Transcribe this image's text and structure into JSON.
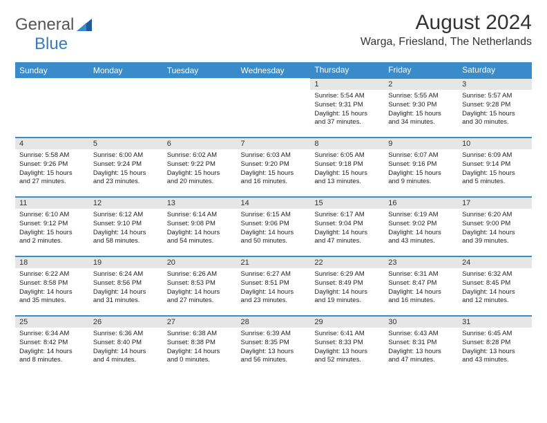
{
  "logo": {
    "text_general": "General",
    "text_blue": "Blue"
  },
  "title": "August 2024",
  "location": "Warga, Friesland, The Netherlands",
  "colors": {
    "header_bg": "#3a8bc9",
    "daynum_bg": "#e6e6e6",
    "border": "#3a8bc9",
    "logo_blue": "#3a7ab8"
  },
  "weekdays": [
    "Sunday",
    "Monday",
    "Tuesday",
    "Wednesday",
    "Thursday",
    "Friday",
    "Saturday"
  ],
  "weeks": [
    [
      {
        "day": "",
        "sunrise": "",
        "sunset": "",
        "daylight": ""
      },
      {
        "day": "",
        "sunrise": "",
        "sunset": "",
        "daylight": ""
      },
      {
        "day": "",
        "sunrise": "",
        "sunset": "",
        "daylight": ""
      },
      {
        "day": "",
        "sunrise": "",
        "sunset": "",
        "daylight": ""
      },
      {
        "day": "1",
        "sunrise": "Sunrise: 5:54 AM",
        "sunset": "Sunset: 9:31 PM",
        "daylight": "Daylight: 15 hours and 37 minutes."
      },
      {
        "day": "2",
        "sunrise": "Sunrise: 5:55 AM",
        "sunset": "Sunset: 9:30 PM",
        "daylight": "Daylight: 15 hours and 34 minutes."
      },
      {
        "day": "3",
        "sunrise": "Sunrise: 5:57 AM",
        "sunset": "Sunset: 9:28 PM",
        "daylight": "Daylight: 15 hours and 30 minutes."
      }
    ],
    [
      {
        "day": "4",
        "sunrise": "Sunrise: 5:58 AM",
        "sunset": "Sunset: 9:26 PM",
        "daylight": "Daylight: 15 hours and 27 minutes."
      },
      {
        "day": "5",
        "sunrise": "Sunrise: 6:00 AM",
        "sunset": "Sunset: 9:24 PM",
        "daylight": "Daylight: 15 hours and 23 minutes."
      },
      {
        "day": "6",
        "sunrise": "Sunrise: 6:02 AM",
        "sunset": "Sunset: 9:22 PM",
        "daylight": "Daylight: 15 hours and 20 minutes."
      },
      {
        "day": "7",
        "sunrise": "Sunrise: 6:03 AM",
        "sunset": "Sunset: 9:20 PM",
        "daylight": "Daylight: 15 hours and 16 minutes."
      },
      {
        "day": "8",
        "sunrise": "Sunrise: 6:05 AM",
        "sunset": "Sunset: 9:18 PM",
        "daylight": "Daylight: 15 hours and 13 minutes."
      },
      {
        "day": "9",
        "sunrise": "Sunrise: 6:07 AM",
        "sunset": "Sunset: 9:16 PM",
        "daylight": "Daylight: 15 hours and 9 minutes."
      },
      {
        "day": "10",
        "sunrise": "Sunrise: 6:09 AM",
        "sunset": "Sunset: 9:14 PM",
        "daylight": "Daylight: 15 hours and 5 minutes."
      }
    ],
    [
      {
        "day": "11",
        "sunrise": "Sunrise: 6:10 AM",
        "sunset": "Sunset: 9:12 PM",
        "daylight": "Daylight: 15 hours and 2 minutes."
      },
      {
        "day": "12",
        "sunrise": "Sunrise: 6:12 AM",
        "sunset": "Sunset: 9:10 PM",
        "daylight": "Daylight: 14 hours and 58 minutes."
      },
      {
        "day": "13",
        "sunrise": "Sunrise: 6:14 AM",
        "sunset": "Sunset: 9:08 PM",
        "daylight": "Daylight: 14 hours and 54 minutes."
      },
      {
        "day": "14",
        "sunrise": "Sunrise: 6:15 AM",
        "sunset": "Sunset: 9:06 PM",
        "daylight": "Daylight: 14 hours and 50 minutes."
      },
      {
        "day": "15",
        "sunrise": "Sunrise: 6:17 AM",
        "sunset": "Sunset: 9:04 PM",
        "daylight": "Daylight: 14 hours and 47 minutes."
      },
      {
        "day": "16",
        "sunrise": "Sunrise: 6:19 AM",
        "sunset": "Sunset: 9:02 PM",
        "daylight": "Daylight: 14 hours and 43 minutes."
      },
      {
        "day": "17",
        "sunrise": "Sunrise: 6:20 AM",
        "sunset": "Sunset: 9:00 PM",
        "daylight": "Daylight: 14 hours and 39 minutes."
      }
    ],
    [
      {
        "day": "18",
        "sunrise": "Sunrise: 6:22 AM",
        "sunset": "Sunset: 8:58 PM",
        "daylight": "Daylight: 14 hours and 35 minutes."
      },
      {
        "day": "19",
        "sunrise": "Sunrise: 6:24 AM",
        "sunset": "Sunset: 8:56 PM",
        "daylight": "Daylight: 14 hours and 31 minutes."
      },
      {
        "day": "20",
        "sunrise": "Sunrise: 6:26 AM",
        "sunset": "Sunset: 8:53 PM",
        "daylight": "Daylight: 14 hours and 27 minutes."
      },
      {
        "day": "21",
        "sunrise": "Sunrise: 6:27 AM",
        "sunset": "Sunset: 8:51 PM",
        "daylight": "Daylight: 14 hours and 23 minutes."
      },
      {
        "day": "22",
        "sunrise": "Sunrise: 6:29 AM",
        "sunset": "Sunset: 8:49 PM",
        "daylight": "Daylight: 14 hours and 19 minutes."
      },
      {
        "day": "23",
        "sunrise": "Sunrise: 6:31 AM",
        "sunset": "Sunset: 8:47 PM",
        "daylight": "Daylight: 14 hours and 16 minutes."
      },
      {
        "day": "24",
        "sunrise": "Sunrise: 6:32 AM",
        "sunset": "Sunset: 8:45 PM",
        "daylight": "Daylight: 14 hours and 12 minutes."
      }
    ],
    [
      {
        "day": "25",
        "sunrise": "Sunrise: 6:34 AM",
        "sunset": "Sunset: 8:42 PM",
        "daylight": "Daylight: 14 hours and 8 minutes."
      },
      {
        "day": "26",
        "sunrise": "Sunrise: 6:36 AM",
        "sunset": "Sunset: 8:40 PM",
        "daylight": "Daylight: 14 hours and 4 minutes."
      },
      {
        "day": "27",
        "sunrise": "Sunrise: 6:38 AM",
        "sunset": "Sunset: 8:38 PM",
        "daylight": "Daylight: 14 hours and 0 minutes."
      },
      {
        "day": "28",
        "sunrise": "Sunrise: 6:39 AM",
        "sunset": "Sunset: 8:35 PM",
        "daylight": "Daylight: 13 hours and 56 minutes."
      },
      {
        "day": "29",
        "sunrise": "Sunrise: 6:41 AM",
        "sunset": "Sunset: 8:33 PM",
        "daylight": "Daylight: 13 hours and 52 minutes."
      },
      {
        "day": "30",
        "sunrise": "Sunrise: 6:43 AM",
        "sunset": "Sunset: 8:31 PM",
        "daylight": "Daylight: 13 hours and 47 minutes."
      },
      {
        "day": "31",
        "sunrise": "Sunrise: 6:45 AM",
        "sunset": "Sunset: 8:28 PM",
        "daylight": "Daylight: 13 hours and 43 minutes."
      }
    ]
  ]
}
